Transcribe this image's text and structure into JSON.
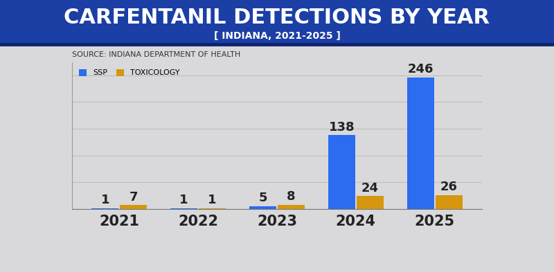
{
  "chart_data": {
    "type": "bar",
    "title": "CARFENTANIL DETECTIONS BY YEAR",
    "subtitle": "[ INDIANA, 2021-2025 ]",
    "source": "SOURCE: INDIANA DEPARTMENT OF HEALTH",
    "categories": [
      "2021",
      "2022",
      "2023",
      "2024",
      "2025"
    ],
    "series": [
      {
        "name": "SSP",
        "color": "#2b6cf0",
        "values": [
          1,
          1,
          5,
          138,
          246
        ]
      },
      {
        "name": "TOXICOLOGY",
        "color": "#d6960e",
        "values": [
          7,
          1,
          8,
          24,
          26
        ]
      }
    ],
    "ylim": [
      0,
      275
    ],
    "yticks": [
      0,
      50,
      100,
      150,
      200,
      250
    ],
    "grid": true,
    "legend": "upper left",
    "data_labels": true,
    "tick_labels": "x"
  }
}
